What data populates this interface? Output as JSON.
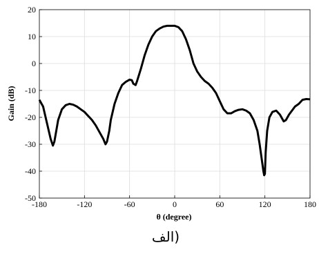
{
  "chart_data": {
    "type": "line",
    "xlabel": "θ (degree)",
    "ylabel": "Gain (dB)",
    "caption": "الف)",
    "x": [
      -180,
      -175,
      -170,
      -165,
      -162,
      -160,
      -155,
      -150,
      -145,
      -140,
      -135,
      -130,
      -125,
      -120,
      -115,
      -110,
      -105,
      -100,
      -95,
      -92,
      -90,
      -87,
      -85,
      -80,
      -75,
      -70,
      -65,
      -60,
      -57,
      -55,
      -52,
      -50,
      -45,
      -40,
      -35,
      -30,
      -25,
      -20,
      -15,
      -10,
      -5,
      0,
      5,
      10,
      15,
      20,
      25,
      30,
      35,
      40,
      45,
      50,
      55,
      60,
      65,
      70,
      75,
      80,
      85,
      90,
      95,
      100,
      105,
      110,
      113,
      116,
      118,
      119,
      120,
      121,
      123,
      126,
      130,
      135,
      140,
      145,
      148,
      152,
      160,
      165,
      170,
      175,
      180
    ],
    "series": [
      {
        "name": "Gain",
        "color": "#000000",
        "values": [
          -13.5,
          -16,
          -22,
          -28,
          -30.5,
          -29,
          -21,
          -17,
          -15.5,
          -15,
          -15.3,
          -16,
          -17,
          -18,
          -19.5,
          -21,
          -23,
          -25.5,
          -28,
          -30,
          -29,
          -25,
          -21,
          -15,
          -11,
          -8,
          -6.8,
          -6,
          -6.2,
          -7.5,
          -8,
          -6.5,
          -2,
          3,
          7,
          10,
          12,
          13,
          13.7,
          14,
          14,
          14,
          13.5,
          12,
          9,
          5,
          0,
          -3,
          -5,
          -6.5,
          -7.5,
          -9,
          -11,
          -14,
          -17,
          -18.5,
          -18.5,
          -17.7,
          -17.2,
          -17,
          -17.5,
          -18.5,
          -21,
          -25,
          -30,
          -36,
          -40,
          -41.5,
          -41,
          -33,
          -25,
          -20,
          -18,
          -17.5,
          -19,
          -21.5,
          -21,
          -19,
          -16,
          -15,
          -13.5,
          -13.2,
          -13.3
        ]
      }
    ],
    "xlim": [
      -180,
      180
    ],
    "xticks": [
      -180,
      -120,
      -60,
      0,
      60,
      120,
      180
    ],
    "ylim": [
      -50,
      20
    ],
    "yticks": [
      -50,
      -40,
      -30,
      -20,
      -10,
      0,
      10,
      20
    ],
    "grid": true
  }
}
